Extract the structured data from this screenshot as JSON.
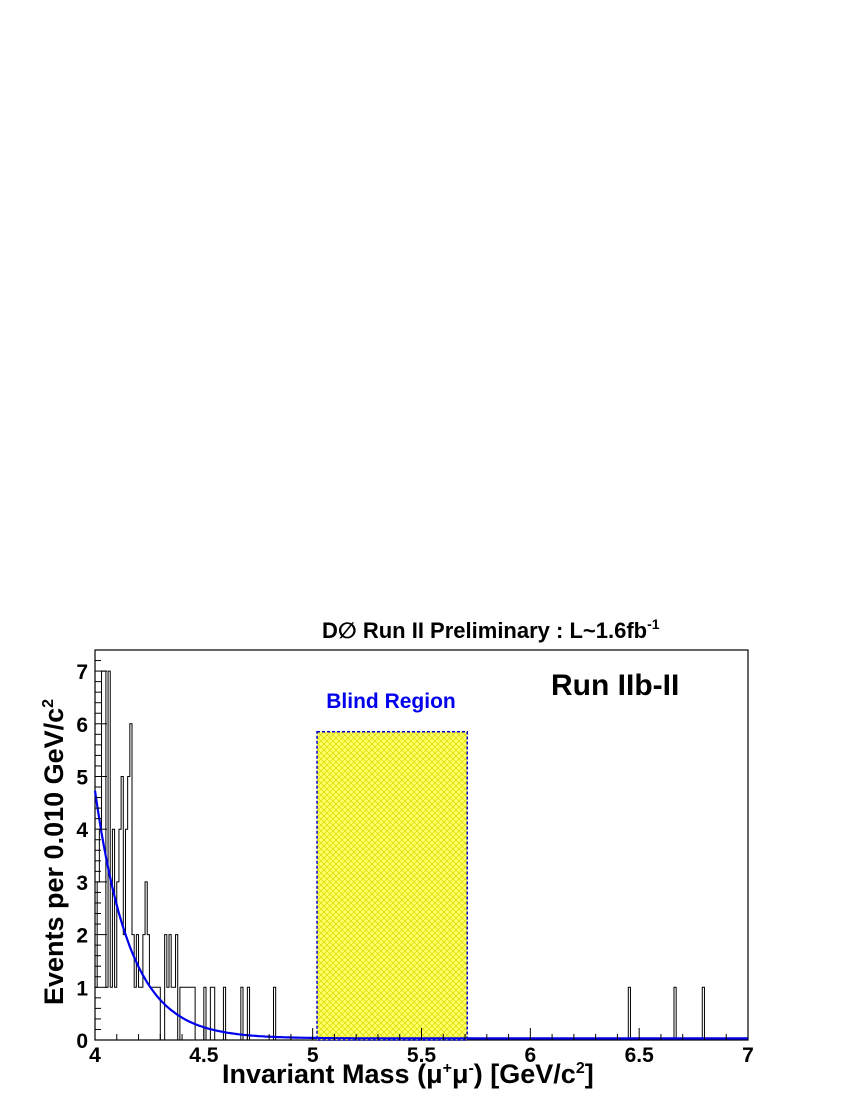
{
  "chart_data": {
    "type": "bar",
    "title": "D∅ Run II Preliminary : L~1.6fb",
    "title_sup": "-1",
    "annotation": "Run IIb-II",
    "xlabel": "Invariant Mass (μ",
    "xlabel_parts": [
      "Invariant Mass (μ",
      "+",
      "μ",
      "-",
      ") [GeV/c",
      "2",
      "]"
    ],
    "ylabel": "Events per 0.010 GeV/c",
    "ylabel_parts": [
      "Events per 0.010 GeV/c",
      "2"
    ],
    "xlim": [
      4,
      7
    ],
    "ylim": [
      0,
      7.4
    ],
    "bin_width": 0.01,
    "x_ticks": [
      "4",
      "4.5",
      "5",
      "5.5",
      "6",
      "6.5",
      "7"
    ],
    "y_ticks": [
      "0",
      "1",
      "2",
      "3",
      "4",
      "5",
      "6",
      "7"
    ],
    "blind_region": {
      "label": "Blind Region",
      "x": [
        5.02,
        5.71
      ],
      "height": 5.85
    },
    "histogram": {
      "bin_starts": [
        4.0,
        4.01,
        4.02,
        4.03,
        4.04,
        4.05,
        4.06,
        4.07,
        4.08,
        4.09,
        4.1,
        4.11,
        4.12,
        4.13,
        4.14,
        4.15,
        4.16,
        4.17,
        4.18,
        4.19,
        4.2,
        4.21,
        4.22,
        4.23,
        4.24,
        4.25,
        4.26,
        4.27,
        4.28,
        4.29,
        4.3,
        4.31,
        4.32,
        4.33,
        4.34,
        4.35,
        4.36,
        4.37,
        4.38,
        4.39,
        4.4,
        4.41,
        4.42,
        4.43,
        4.44,
        4.45,
        4.46,
        4.47,
        4.48,
        4.49,
        4.5,
        4.51,
        4.52,
        4.53,
        4.54,
        4.55,
        4.56,
        4.57,
        4.58,
        4.59,
        4.6,
        4.61,
        4.62,
        4.63,
        4.64,
        4.65,
        4.66,
        4.67,
        4.68,
        4.69,
        4.7,
        4.71,
        4.72,
        4.73,
        4.74,
        4.75,
        4.76,
        4.77,
        4.78,
        4.79,
        4.8,
        4.81,
        4.82
      ],
      "counts": [
        1,
        3,
        4,
        7,
        7,
        1,
        7,
        1,
        4,
        1,
        3,
        4,
        5,
        2,
        4,
        5,
        6,
        2,
        1,
        2,
        1,
        1,
        2,
        3,
        2,
        1,
        1,
        1,
        1,
        1,
        0,
        0,
        2,
        1,
        2,
        1,
        1,
        2,
        0,
        1,
        1,
        1,
        1,
        1,
        1,
        1,
        0,
        0,
        0,
        0,
        1,
        0,
        0,
        1,
        1,
        0,
        0,
        0,
        0,
        1,
        0,
        0,
        0,
        0,
        0,
        0,
        0,
        1,
        0,
        0,
        1,
        0,
        0,
        0,
        0,
        0,
        0,
        0,
        0,
        0,
        0,
        0,
        1
      ],
      "extra_bins": [
        {
          "x": 6.45,
          "count": 1
        },
        {
          "x": 6.66,
          "count": 1
        },
        {
          "x": 6.79,
          "count": 1
        }
      ]
    },
    "fit": {
      "amplitude": 4.7,
      "decay": 6.2,
      "x0": 4.0,
      "floor": 0.03
    },
    "colors": {
      "fit": "#0000ee",
      "blind_fill": "#ffff66",
      "blind_edge": "#0000cc",
      "blind_label": "#0000ee",
      "axis": "#000000"
    }
  }
}
